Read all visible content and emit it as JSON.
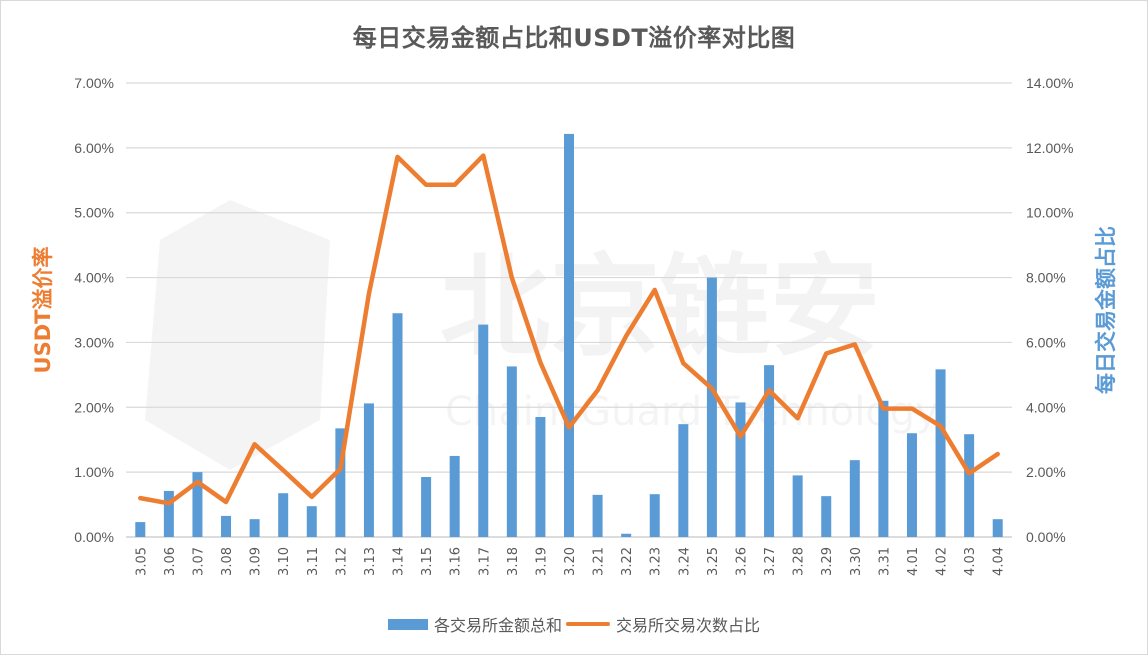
{
  "chart_data": {
    "type": "bar+line",
    "title": "每日交易金额占比和USDT溢价率对比图",
    "xlabel": "",
    "ylabel_left": "USDT溢价率",
    "ylabel_right": "每日交易金额占比",
    "categories": [
      "3.05",
      "3.06",
      "3.07",
      "3.08",
      "3.09",
      "3.10",
      "3.11",
      "3.12",
      "3.13",
      "3.14",
      "3.15",
      "3.16",
      "3.17",
      "3.18",
      "3.19",
      "3.20",
      "3.21",
      "3.22",
      "3.23",
      "3.24",
      "3.25",
      "3.26",
      "3.27",
      "3.28",
      "3.29",
      "3.30",
      "3.31",
      "4.01",
      "4.02",
      "4.03",
      "4.04"
    ],
    "y_left": {
      "min": 0,
      "max": 7,
      "step": 1,
      "ticks": [
        "0.00%",
        "1.00%",
        "2.00%",
        "3.00%",
        "4.00%",
        "5.00%",
        "6.00%",
        "7.00%"
      ]
    },
    "y_right": {
      "min": 0,
      "max": 14,
      "step": 2,
      "ticks": [
        "0.00%",
        "2.00%",
        "4.00%",
        "6.00%",
        "8.00%",
        "10.00%",
        "12.00%",
        "14.00%"
      ]
    },
    "grid": true,
    "legend_position": "bottom",
    "series": [
      {
        "name": "各交易所金额总和",
        "type": "bar",
        "axis": "right",
        "color": "#5B9BD5",
        "unit": "%",
        "values": [
          0.46,
          1.42,
          2.0,
          0.65,
          0.55,
          1.35,
          0.95,
          3.35,
          4.12,
          6.9,
          1.85,
          2.5,
          6.55,
          5.26,
          3.7,
          12.43,
          1.3,
          0.1,
          1.32,
          3.48,
          8.0,
          4.15,
          5.3,
          1.9,
          1.26,
          2.37,
          4.2,
          3.2,
          5.17,
          3.17,
          0.55
        ]
      },
      {
        "name": "交易所交易次数占比",
        "type": "line",
        "axis": "left",
        "color": "#ED7D31",
        "unit": "%",
        "values": [
          0.6,
          0.52,
          0.85,
          0.54,
          1.43,
          1.03,
          0.62,
          1.05,
          3.75,
          5.86,
          5.43,
          5.43,
          5.88,
          4.0,
          2.69,
          1.69,
          2.26,
          3.1,
          3.81,
          2.68,
          2.29,
          1.55,
          2.26,
          1.83,
          2.83,
          2.97,
          1.98,
          1.98,
          1.71,
          0.98,
          1.28
        ]
      }
    ]
  },
  "watermark": {
    "text": "北京链安",
    "subtext": "ChainsGuard Technology"
  },
  "legend": {
    "bar_label": "各交易所金额总和",
    "line_label": "交易所交易次数占比"
  }
}
